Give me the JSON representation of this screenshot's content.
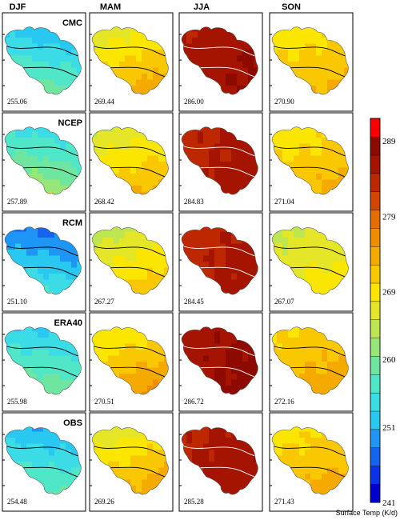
{
  "chart_data": {
    "type": "heatmap",
    "title": "",
    "seasons": [
      "DJF",
      "MAM",
      "JJA",
      "SON"
    ],
    "datasets": [
      "CMC",
      "NCEP",
      "RCM",
      "ERA40",
      "OBS"
    ],
    "mean_values": [
      [
        "255.06",
        "269.44",
        "286.00",
        "270.90"
      ],
      [
        "257.89",
        "268.42",
        "284.83",
        "271.04"
      ],
      [
        "251.10",
        "267.27",
        "284.45",
        "267.07"
      ],
      [
        "255.98",
        "270.51",
        "286.72",
        "272.16"
      ],
      [
        "254.48",
        "269.26",
        "285.28",
        "271.43"
      ]
    ],
    "colorbar": {
      "label": "Surface Temp (K/d)",
      "range": [
        241,
        292
      ],
      "tick_labels": [
        "241",
        "251",
        "260",
        "269",
        "279",
        "289"
      ],
      "tick_values": [
        241,
        251,
        260,
        269,
        279,
        289
      ],
      "colors": [
        "#0000d0",
        "#0a32e6",
        "#1464f0",
        "#1e96f5",
        "#28c8f0",
        "#3cdce6",
        "#50e6c8",
        "#6ee6a0",
        "#96e678",
        "#bee650",
        "#e6e628",
        "#fae600",
        "#fac800",
        "#f5aa00",
        "#f08c00",
        "#e66e00",
        "#d24600",
        "#be2800",
        "#a51400",
        "#8c0a00",
        "#fa0000"
      ]
    }
  }
}
